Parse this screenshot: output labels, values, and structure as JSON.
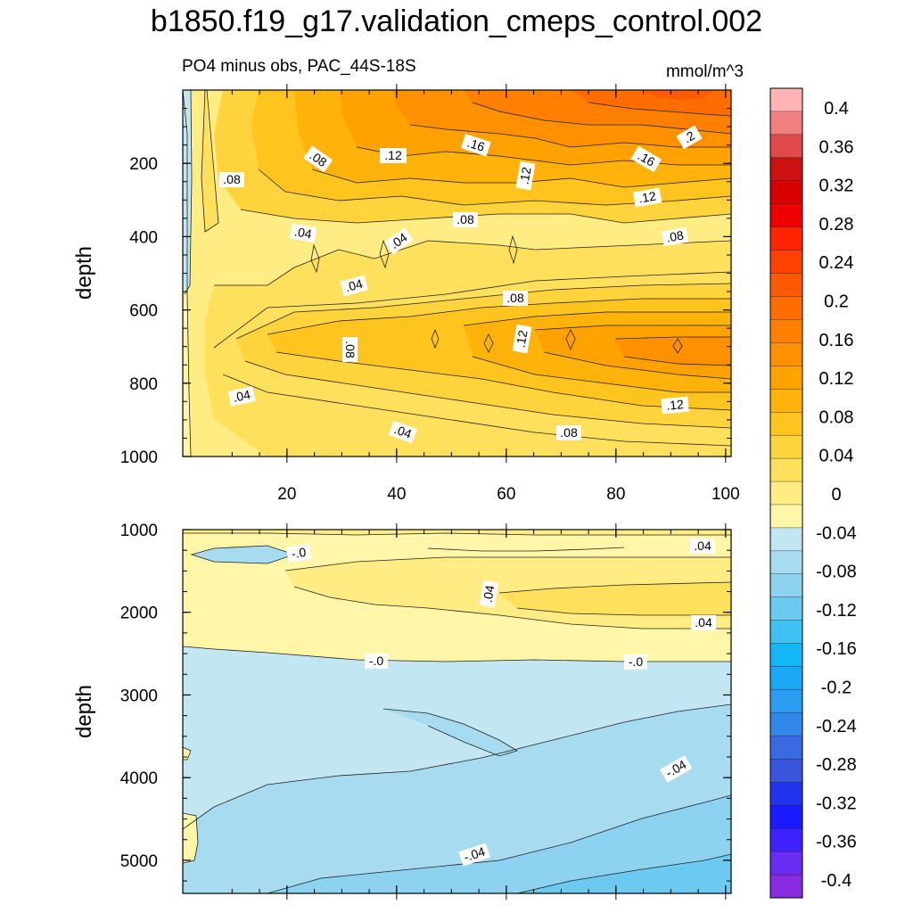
{
  "chart_data": {
    "type": "contour",
    "title": "b1850.f19_g17.validation_cmeps_control.002",
    "subtitle": "PO4 minus obs, PAC_44S-18S",
    "units": "mmol/m^3",
    "colors": {
      "neg": [
        "#8a2be2",
        "#6a2cf2",
        "#3b22ff",
        "#1a1aff",
        "#2233ee",
        "#3a56dd",
        "#3a6ae2",
        "#3487ea",
        "#2b9cf0",
        "#1aa8f5",
        "#13b7f7",
        "#3fc1f2",
        "#6ccaf0",
        "#8dd3f1",
        "#a7dcf0",
        "#c3e6f3"
      ],
      "pos": [
        "#fff6a8",
        "#ffec82",
        "#ffe05d",
        "#ffd33c",
        "#ffc41e",
        "#ffb30a",
        "#ffa200",
        "#ff9100",
        "#ff8000",
        "#ff6d00",
        "#ff5a00",
        "#ff4100",
        "#ff2400",
        "#ee0000",
        "#d80000",
        "#cc1111",
        "#e04a4a",
        "#f08080",
        "#ffb3b3"
      ]
    },
    "colorbar": {
      "labels": [
        "0.4",
        "0.36",
        "0.32",
        "0.28",
        "0.24",
        "0.2",
        "0.16",
        "0.12",
        "0.08",
        "0.04",
        "0",
        "-0.04",
        "-0.08",
        "-0.12",
        "-0.16",
        "-0.2",
        "-0.24",
        "-0.28",
        "-0.32",
        "-0.36",
        "-0.4"
      ]
    },
    "x": {
      "ticks": [
        20,
        40,
        60,
        80,
        100
      ],
      "ticklabels": [
        "20",
        "40",
        "60",
        "80",
        "100"
      ],
      "range": [
        1,
        101
      ]
    },
    "panels": [
      {
        "name": "upper",
        "ylabel": "depth",
        "yrange": [
          0,
          1000
        ],
        "yticks": [
          200,
          400,
          600,
          800,
          1000
        ],
        "yticklabels": [
          "200",
          "400",
          "600",
          "800",
          "1000"
        ],
        "contour_labels": [
          ".08",
          ".12",
          ".16",
          ".2",
          ".08",
          ".12",
          ".16",
          ".12",
          ".04",
          ".04",
          ".08",
          ".08",
          ".04",
          ".08",
          ".12",
          ".08",
          ".04",
          ".12",
          ".04",
          ".08"
        ]
      },
      {
        "name": "lower",
        "ylabel": "depth",
        "yrange": [
          1000,
          5400
        ],
        "yticks": [
          1000,
          2000,
          3000,
          4000,
          5000
        ],
        "yticklabels": [
          "1000",
          "2000",
          "3000",
          "4000",
          "5000"
        ],
        "contour_labels": [
          "-.0",
          ".04",
          ".04",
          ".04",
          "-.0",
          "-.0",
          "-.04",
          "-.04"
        ]
      }
    ]
  }
}
